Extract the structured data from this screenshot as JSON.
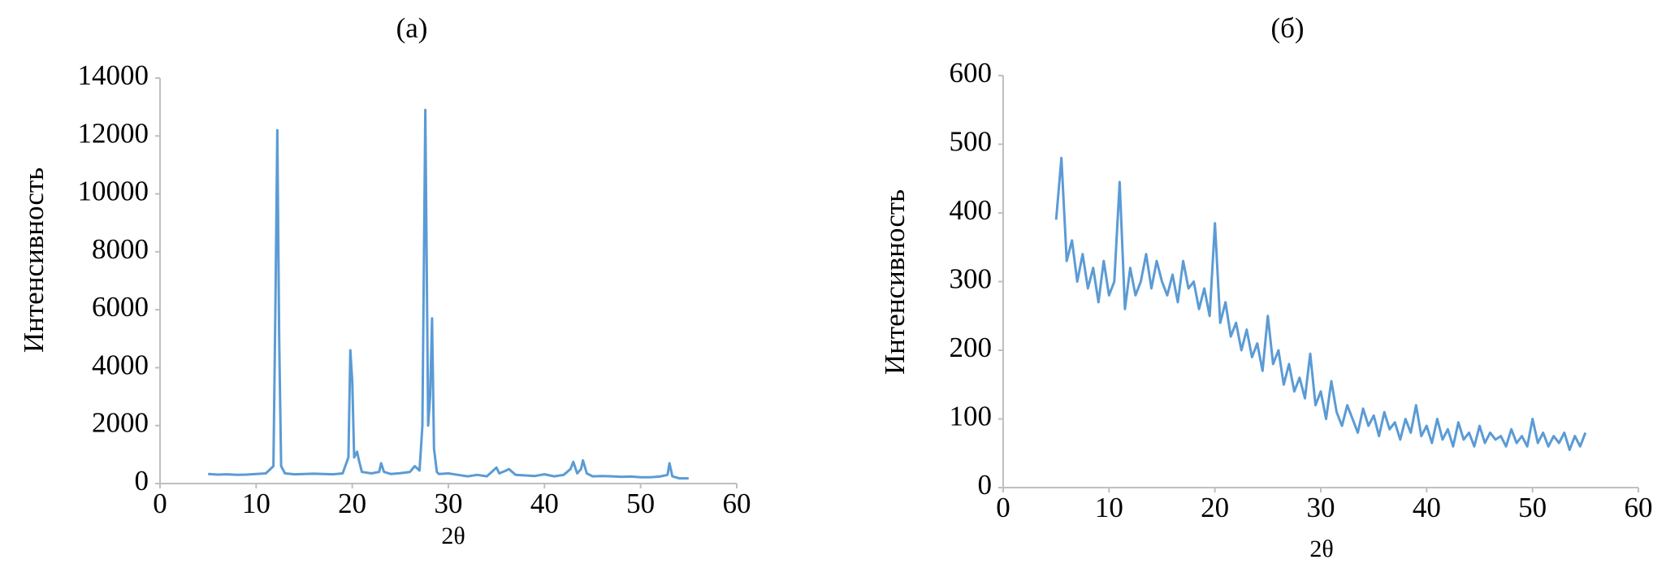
{
  "chart_data": [
    {
      "type": "line",
      "title": "(a)",
      "x_label": "2θ",
      "y_label": "Интенсивность",
      "color": "#5b9bd5",
      "x": [
        5,
        6,
        7,
        8,
        9,
        10,
        11,
        11.8,
        12.0,
        12.2,
        12.4,
        12.6,
        13,
        14,
        15,
        16,
        17,
        18,
        19,
        19.6,
        19.8,
        20.0,
        20.2,
        20.5,
        20.7,
        21,
        22,
        22.8,
        23,
        23.3,
        24,
        25,
        26,
        26.5,
        27,
        27.3,
        27.6,
        27.9,
        28.1,
        28.3,
        28.5,
        28.8,
        29,
        30,
        31,
        32,
        33,
        34,
        35,
        35.3,
        36,
        36.3,
        37,
        38,
        39,
        40,
        41,
        42,
        42.7,
        43,
        43.4,
        43.8,
        44,
        44.4,
        45,
        46,
        47,
        48,
        49,
        50,
        51,
        52,
        52.8,
        53,
        53.3,
        54,
        55
      ],
      "values": [
        330,
        310,
        320,
        300,
        310,
        330,
        350,
        600,
        6000,
        12200,
        5000,
        600,
        350,
        320,
        330,
        340,
        330,
        320,
        350,
        900,
        4600,
        3500,
        900,
        1100,
        800,
        400,
        350,
        400,
        700,
        400,
        330,
        360,
        400,
        600,
        450,
        2000,
        12900,
        2000,
        3000,
        5700,
        1200,
        400,
        330,
        350,
        300,
        250,
        300,
        250,
        550,
        350,
        450,
        500,
        300,
        280,
        260,
        320,
        250,
        300,
        500,
        750,
        350,
        500,
        800,
        350,
        250,
        260,
        250,
        230,
        240,
        220,
        220,
        240,
        300,
        700,
        250,
        180,
        180
      ],
      "xlim": [
        0,
        60
      ],
      "xticks": [
        0,
        10,
        20,
        30,
        40,
        50,
        60
      ],
      "ylim": [
        0,
        14000
      ],
      "yticks": [
        0,
        2000,
        4000,
        6000,
        8000,
        10000,
        12000,
        14000
      ]
    },
    {
      "type": "line",
      "title": "(б)",
      "x_label": "2θ",
      "y_label": "Интенсивность",
      "color": "#5b9bd5",
      "x": [
        5,
        5.5,
        6,
        6.5,
        7,
        7.5,
        8,
        8.5,
        9,
        9.5,
        10,
        10.5,
        11,
        11.5,
        12,
        12.5,
        13,
        13.5,
        14,
        14.5,
        15,
        15.5,
        16,
        16.5,
        17,
        17.5,
        18,
        18.5,
        19,
        19.5,
        20,
        20.5,
        21,
        21.5,
        22,
        22.5,
        23,
        23.5,
        24,
        24.5,
        25,
        25.5,
        26,
        26.5,
        27,
        27.5,
        28,
        28.5,
        29,
        29.5,
        30,
        30.5,
        31,
        31.5,
        32,
        32.5,
        33,
        33.5,
        34,
        34.5,
        35,
        35.5,
        36,
        36.5,
        37,
        37.5,
        38,
        38.5,
        39,
        39.5,
        40,
        40.5,
        41,
        41.5,
        42,
        42.5,
        43,
        43.5,
        44,
        44.5,
        45,
        45.5,
        46,
        46.5,
        47,
        47.5,
        48,
        48.5,
        49,
        49.5,
        50,
        50.5,
        51,
        51.5,
        52,
        52.5,
        53,
        53.5,
        54,
        54.5,
        55
      ],
      "values": [
        390,
        480,
        330,
        360,
        300,
        340,
        290,
        320,
        270,
        330,
        280,
        300,
        445,
        260,
        320,
        280,
        300,
        340,
        290,
        330,
        300,
        280,
        310,
        270,
        330,
        290,
        300,
        260,
        290,
        250,
        385,
        240,
        270,
        220,
        240,
        200,
        230,
        190,
        210,
        170,
        250,
        180,
        200,
        150,
        180,
        140,
        160,
        130,
        195,
        120,
        140,
        100,
        155,
        110,
        90,
        120,
        100,
        80,
        115,
        90,
        105,
        75,
        110,
        85,
        95,
        70,
        100,
        80,
        120,
        75,
        90,
        65,
        100,
        70,
        85,
        60,
        95,
        70,
        80,
        60,
        90,
        65,
        80,
        70,
        75,
        60,
        85,
        65,
        75,
        60,
        100,
        65,
        80,
        60,
        75,
        65,
        80,
        55,
        75,
        60,
        80
      ],
      "xlim": [
        0,
        60
      ],
      "xticks": [
        0,
        10,
        20,
        30,
        40,
        50,
        60
      ],
      "ylim": [
        0,
        600
      ],
      "yticks": [
        0,
        100,
        200,
        300,
        400,
        500,
        600
      ]
    }
  ]
}
